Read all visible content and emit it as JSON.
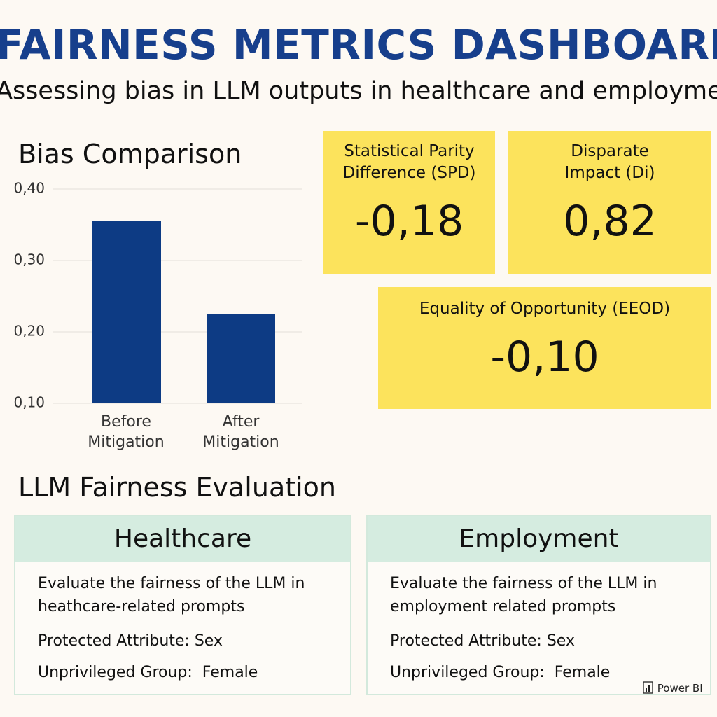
{
  "header": {
    "title": "FAIRNESS METRICS DASHBOARD",
    "subtitle": "Assessing bias in LLM outputs in healthcare and employment"
  },
  "chart_data": {
    "type": "bar",
    "title": "Bias Comparison",
    "categories": [
      "Before Mitigation",
      "After Mitigation"
    ],
    "values": [
      0.355,
      0.225
    ],
    "color": "#0d3b84",
    "ylim": [
      0.1,
      0.4
    ],
    "yticks": [
      {
        "value": 0.1,
        "label": "0,10"
      },
      {
        "value": 0.2,
        "label": "0,20"
      },
      {
        "value": 0.3,
        "label": "0,30"
      },
      {
        "value": 0.4,
        "label": "0,40"
      }
    ],
    "grid": true
  },
  "kpis": [
    {
      "label": "Statistical Parity Difference (SPD)",
      "value": "-0,18"
    },
    {
      "label": "Disparate Impact (Di)",
      "value": "0,82"
    },
    {
      "label": "Equality of Opportunity (EEOD)",
      "value": "-0,10"
    }
  ],
  "evaluation": {
    "title": "LLM Fairness Evaluation",
    "cards": [
      {
        "title": "Healthcare",
        "description": "Evaluate the fairness of the LLM in heathcare-related prompts",
        "attribute": "Protected Attribute: Sex",
        "group": "Unprivileged Group:  Female"
      },
      {
        "title": "Employment",
        "description": "Evaluate the fairness of the LLM in employment related prompts",
        "attribute": "Protected Attribute: Sex",
        "group": "Unprivileged Group:  Female"
      }
    ]
  },
  "footer": {
    "brand": "Power BI"
  }
}
